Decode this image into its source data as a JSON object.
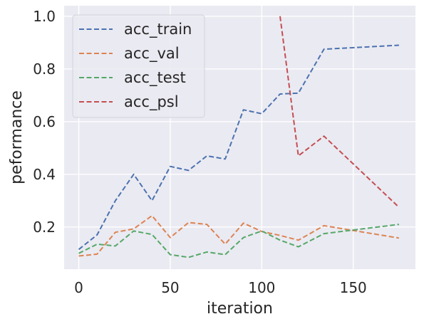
{
  "chart_data": {
    "type": "line",
    "title": "",
    "xlabel": "iteration",
    "ylabel": "peformance",
    "xlim": [
      -8,
      184
    ],
    "ylim": [
      0.04,
      1.04
    ],
    "xticks": [
      0,
      50,
      100,
      150
    ],
    "yticks": [
      0.2,
      0.4,
      0.6,
      0.8,
      1.0
    ],
    "xtick_labels": [
      "0",
      "50",
      "100",
      "150"
    ],
    "ytick_labels": [
      "0.2",
      "0.4",
      "0.6",
      "0.8",
      "1.0"
    ],
    "grid": true,
    "legend_position": "top-left",
    "line_style": "dashed",
    "background_color": "#eaeaf2",
    "series": [
      {
        "name": "acc_train",
        "color": "#4c72b0",
        "x": [
          0,
          10,
          20,
          30,
          40,
          50,
          60,
          70,
          80,
          90,
          100,
          110,
          120,
          134,
          175
        ],
        "y": [
          0.115,
          0.17,
          0.3,
          0.4,
          0.3,
          0.43,
          0.415,
          0.47,
          0.458,
          0.645,
          0.63,
          0.705,
          0.708,
          0.875,
          0.89
        ]
      },
      {
        "name": "acc_val",
        "color": "#dd8452",
        "x": [
          0,
          10,
          20,
          30,
          40,
          50,
          60,
          70,
          80,
          90,
          100,
          110,
          120,
          134,
          175
        ],
        "y": [
          0.09,
          0.097,
          0.18,
          0.193,
          0.243,
          0.16,
          0.217,
          0.21,
          0.135,
          0.215,
          0.183,
          0.168,
          0.15,
          0.205,
          0.158
        ]
      },
      {
        "name": "acc_test",
        "color": "#55a868",
        "x": [
          0,
          10,
          20,
          30,
          40,
          50,
          60,
          70,
          80,
          90,
          100,
          110,
          120,
          134,
          175
        ],
        "y": [
          0.1,
          0.135,
          0.128,
          0.185,
          0.172,
          0.095,
          0.085,
          0.105,
          0.095,
          0.16,
          0.185,
          0.15,
          0.125,
          0.175,
          0.21
        ]
      },
      {
        "name": "acc_psl",
        "color": "#c44e52",
        "x": [
          110,
          120,
          134,
          175
        ],
        "y": [
          1.0,
          0.47,
          0.545,
          0.275
        ]
      }
    ]
  }
}
